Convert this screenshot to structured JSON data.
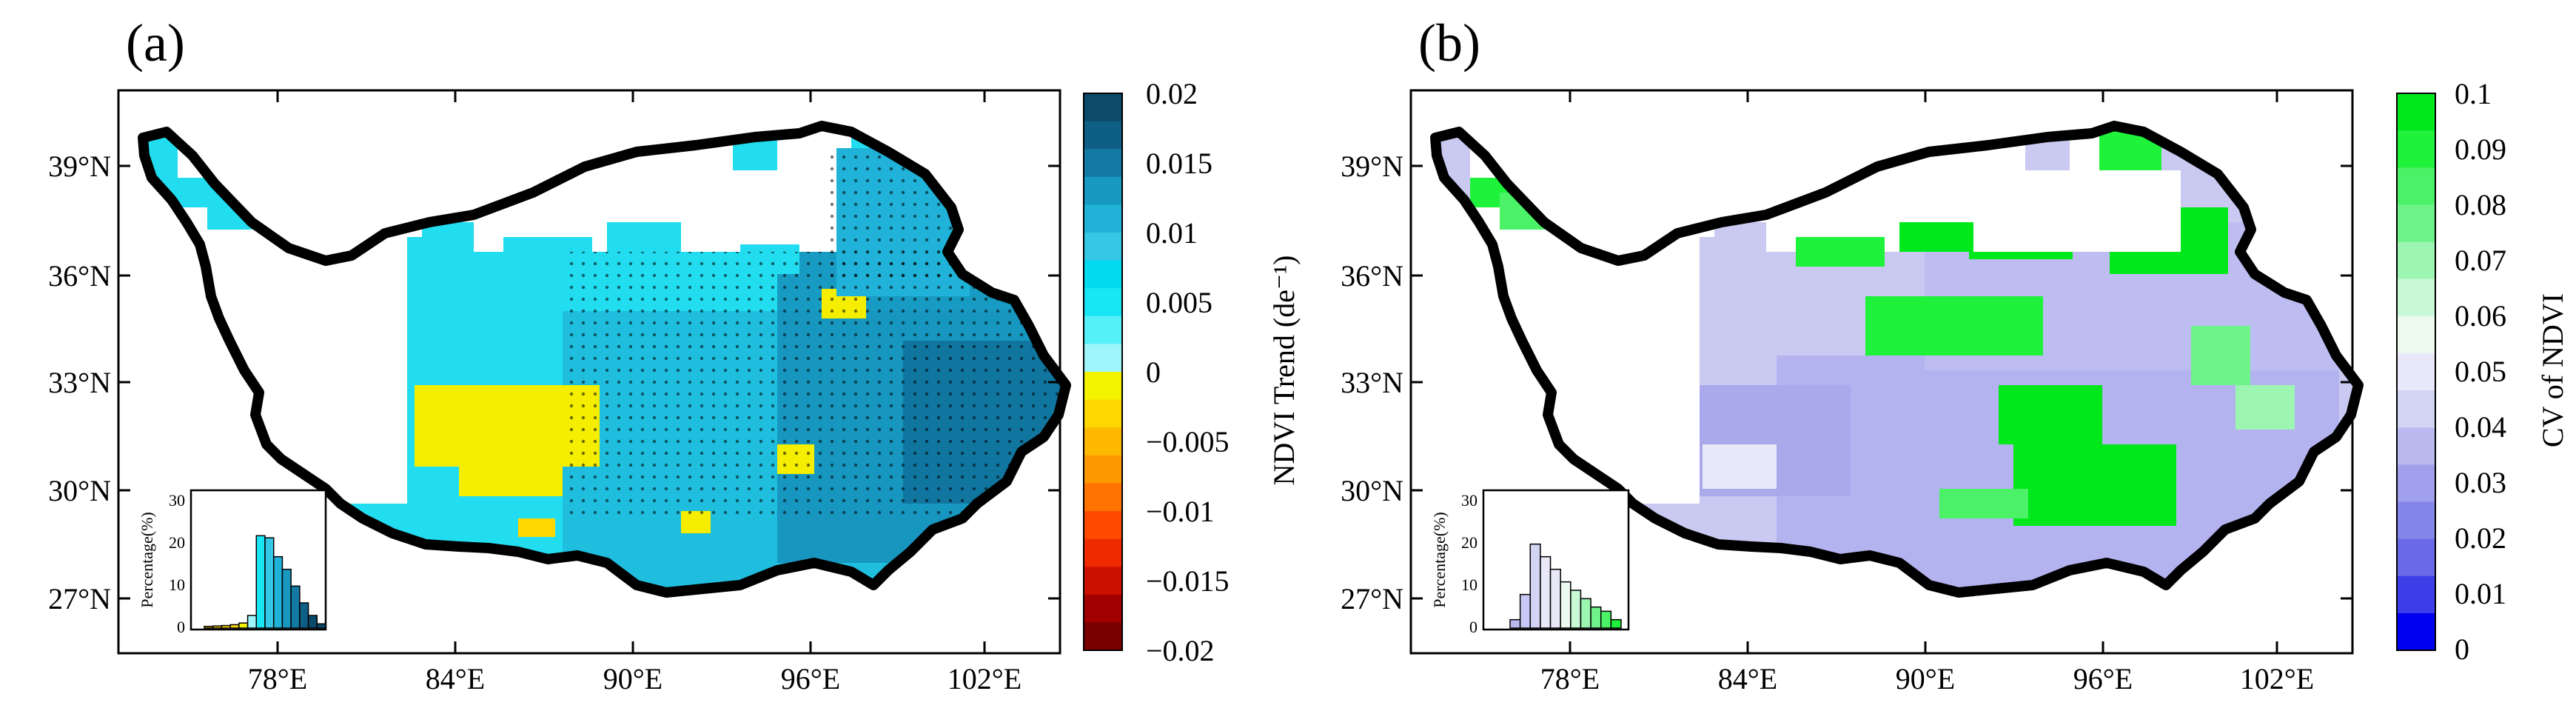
{
  "figure": {
    "panels": [
      {
        "id": "a",
        "label": "(a)",
        "lat_ticks": [
          "39°N",
          "36°N",
          "33°N",
          "30°N",
          "27°N"
        ],
        "lon_ticks": [
          "78°E",
          "84°E",
          "90°E",
          "96°E",
          "102°E"
        ],
        "colorbar": {
          "title": "NDVI Trend (de⁻¹)",
          "labels": [
            "0.02",
            "0.015",
            "0.01",
            "0.005",
            "0",
            "−0.005",
            "−0.01",
            "−0.015",
            "−0.02"
          ],
          "colors": [
            "#0b4a6a",
            "#0f5e86",
            "#137aa3",
            "#1899c2",
            "#20b2d8",
            "#35c8e6",
            "#00d9ef",
            "#18e6f4",
            "#56f0f8",
            "#9ef6fa",
            "#f3f300",
            "#ffd700",
            "#ffb800",
            "#ff9900",
            "#ff7400",
            "#ff4a00",
            "#f02a00",
            "#cc1000",
            "#a00000",
            "#7a0000"
          ],
          "min": -0.02,
          "max": 0.02
        },
        "inset": {
          "ylabel": "Percentage(%)",
          "yticks": [
            "0",
            "10",
            "20",
            "30"
          ],
          "ymax": 30,
          "bars": [
            0.4,
            0.5,
            0.6,
            0.8,
            1.2,
            3,
            22,
            21.5,
            17,
            14,
            10,
            6,
            3,
            1
          ],
          "bar_colors": [
            "#ffd700",
            "#ffd700",
            "#ffd700",
            "#ffd700",
            "#f3f300",
            "#9ef6fa",
            "#18e6f4",
            "#35c8e6",
            "#20b2d8",
            "#1899c2",
            "#137aa3",
            "#0f5e86",
            "#0b4a6a",
            "#0b4a6a"
          ]
        }
      },
      {
        "id": "b",
        "label": "(b)",
        "lat_ticks": [
          "39°N",
          "36°N",
          "33°N",
          "30°N",
          "27°N"
        ],
        "lon_ticks": [
          "78°E",
          "84°E",
          "90°E",
          "96°E",
          "102°E"
        ],
        "colorbar": {
          "title": "CV of NDVI",
          "labels": [
            "0.1",
            "0.09",
            "0.08",
            "0.07",
            "0.06",
            "0.05",
            "0.04",
            "0.03",
            "0.02",
            "0.01",
            "0"
          ],
          "colors": [
            "#00e81c",
            "#1ff23a",
            "#4bf166",
            "#6ff28a",
            "#9cf5b0",
            "#c8f8d6",
            "#ecfaf0",
            "#e8e8f8",
            "#d3d3f4",
            "#babaf0",
            "#a0a0ec",
            "#8686ea",
            "#6a6ae8",
            "#3e3ee8",
            "#0000f0"
          ],
          "min": 0,
          "max": 0.1
        },
        "inset": {
          "ylabel": "Percentage(%)",
          "yticks": [
            "0",
            "10",
            "20",
            "30"
          ],
          "ymax": 30,
          "bars": [
            2,
            8,
            20,
            17,
            14,
            11,
            9,
            7,
            5,
            4,
            2
          ],
          "bar_colors": [
            "#babaf0",
            "#c8c8f6",
            "#d3d3f4",
            "#e8e8f8",
            "#e8e8f8",
            "#ecfaf0",
            "#c8f8d6",
            "#9cf5b0",
            "#6ff28a",
            "#4bf166",
            "#1ff23a"
          ]
        }
      }
    ]
  }
}
